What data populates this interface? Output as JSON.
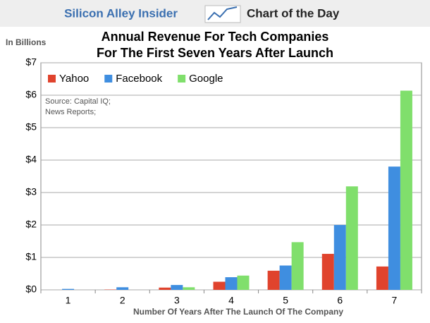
{
  "header": {
    "brand": "Silicon Alley Insider",
    "feature": "Chart of the Day"
  },
  "chart_data": {
    "type": "bar",
    "title": [
      "Annual Revenue For Tech Companies",
      "For The First Seven Years After Launch"
    ],
    "y_label": "In Billions",
    "x_label": "Number Of Years After The Launch Of The Company",
    "source": [
      "Source: Capital IQ;",
      "News Reports;"
    ],
    "categories": [
      "1",
      "2",
      "3",
      "4",
      "5",
      "6",
      "7"
    ],
    "series": [
      {
        "name": "Yahoo",
        "color": "#e0432d",
        "values": [
          0.0,
          0.01,
          0.07,
          0.25,
          0.59,
          1.11,
          0.72
        ]
      },
      {
        "name": "Facebook",
        "color": "#3f8ee0",
        "values": [
          0.03,
          0.08,
          0.15,
          0.39,
          0.75,
          2.0,
          3.8
        ]
      },
      {
        "name": "Google",
        "color": "#80df6c",
        "values": [
          0.0,
          0.0,
          0.08,
          0.44,
          1.47,
          3.19,
          6.14
        ]
      }
    ],
    "ylim": [
      0,
      7
    ],
    "yticks": [
      {
        "value": 0,
        "label": "$0"
      },
      {
        "value": 1,
        "label": "$1"
      },
      {
        "value": 2,
        "label": "$2"
      },
      {
        "value": 3,
        "label": "$3"
      },
      {
        "value": 4,
        "label": "$4"
      },
      {
        "value": 5,
        "label": "$5"
      },
      {
        "value": 6,
        "label": "$6"
      },
      {
        "value": 7,
        "label": "$7"
      }
    ],
    "grid": true,
    "legend": "top-left"
  }
}
